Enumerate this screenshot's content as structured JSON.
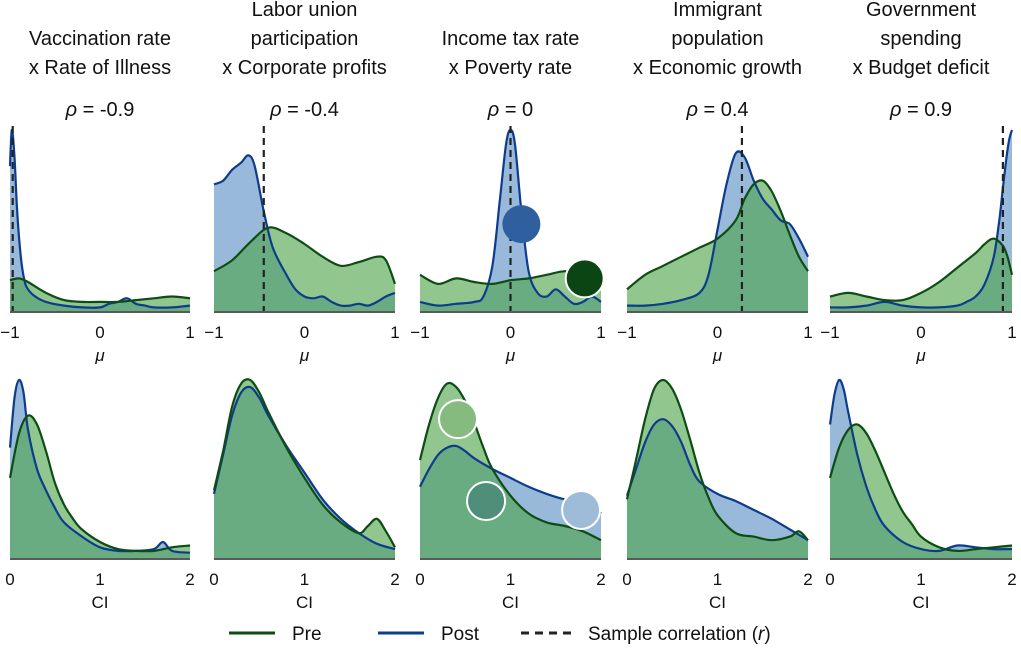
{
  "colors": {
    "pre_line": "#0d4d14",
    "pre_fill": "#4ea44b",
    "post_line": "#0e3c8c",
    "post_fill": "#5b8ec4",
    "dashed": "#222222",
    "marker_dark_blue": "#2f5f9e",
    "marker_dark_green": "#0b4513",
    "marker_light_green": "#86bb80",
    "marker_mid_green": "#4f8e79",
    "marker_light_blue": "#9ebcd8"
  },
  "legend": {
    "pre": "Pre",
    "post": "Post",
    "sample": "Sample correlation (r)",
    "sample_prefix": "Sample correlation (",
    "sample_var": "r",
    "sample_suffix": ")"
  },
  "chart_data": [
    {
      "type": "area",
      "panel": "top-1",
      "title_lines": [
        "Vaccination rate",
        "x Rate of Illness"
      ],
      "rho_label": "ρ = -0.9",
      "rho_var": "ρ",
      "rho_value": "= -0.9",
      "xlabel": "μ",
      "xlim": [
        -1,
        1
      ],
      "xticks": [
        "−1",
        "0",
        "1"
      ],
      "sample_r": -0.97,
      "series": [
        {
          "name": "Pre",
          "x": [
            -1,
            -0.9,
            -0.8,
            -0.6,
            -0.4,
            -0.2,
            0,
            0.2,
            0.4,
            0.6,
            0.8,
            1
          ],
          "y": [
            0.17,
            0.18,
            0.16,
            0.1,
            0.06,
            0.05,
            0.05,
            0.05,
            0.06,
            0.07,
            0.08,
            0.07
          ]
        },
        {
          "name": "Post",
          "x": [
            -1,
            -0.98,
            -0.95,
            -0.92,
            -0.88,
            -0.84,
            -0.8,
            -0.72,
            -0.6,
            -0.4,
            -0.2,
            0,
            0.1,
            0.2,
            0.3,
            0.4,
            0.5,
            0.6,
            0.8,
            1
          ],
          "y": [
            0.8,
            1.0,
            0.85,
            0.55,
            0.3,
            0.17,
            0.12,
            0.08,
            0.05,
            0.03,
            0.02,
            0.02,
            0.04,
            0.05,
            0.07,
            0.04,
            0.03,
            0.02,
            0.02,
            0.03
          ]
        }
      ]
    },
    {
      "type": "area",
      "panel": "top-2",
      "title_lines": [
        "Labor union",
        "participation",
        "x Corporate profits"
      ],
      "rho_label": "ρ = -0.4",
      "rho_var": "ρ",
      "rho_value": "= -0.4",
      "xlabel": "μ",
      "xlim": [
        -1,
        1
      ],
      "xticks": [
        "−1",
        "0",
        "1"
      ],
      "sample_r": -0.45,
      "series": [
        {
          "name": "Pre",
          "x": [
            -1,
            -0.8,
            -0.6,
            -0.4,
            -0.2,
            0,
            0.2,
            0.4,
            0.6,
            0.8,
            0.9,
            1
          ],
          "y": [
            0.22,
            0.28,
            0.38,
            0.46,
            0.43,
            0.37,
            0.3,
            0.25,
            0.27,
            0.3,
            0.28,
            0.15
          ]
        },
        {
          "name": "Post",
          "x": [
            -1,
            -0.9,
            -0.8,
            -0.7,
            -0.62,
            -0.55,
            -0.45,
            -0.35,
            -0.2,
            -0.1,
            0,
            0.1,
            0.2,
            0.3,
            0.4,
            0.5,
            0.6,
            0.7,
            0.8,
            0.9,
            1
          ],
          "y": [
            0.7,
            0.72,
            0.78,
            0.82,
            0.86,
            0.8,
            0.55,
            0.35,
            0.2,
            0.12,
            0.08,
            0.07,
            0.08,
            0.05,
            0.03,
            0.03,
            0.04,
            0.03,
            0.05,
            0.08,
            0.1
          ]
        }
      ]
    },
    {
      "type": "area",
      "panel": "top-3",
      "title_lines": [
        "Income tax rate",
        "x Poverty rate"
      ],
      "rho_label": "ρ = 0",
      "rho_var": "ρ",
      "rho_value": "= 0",
      "xlabel": "μ",
      "xlim": [
        -1,
        1
      ],
      "xticks": [
        "−1",
        "0",
        "1"
      ],
      "sample_r": 0,
      "series": [
        {
          "name": "Pre",
          "x": [
            -1,
            -0.8,
            -0.6,
            -0.4,
            -0.2,
            0,
            0.2,
            0.4,
            0.6,
            0.8,
            1
          ],
          "y": [
            0.2,
            0.15,
            0.18,
            0.16,
            0.15,
            0.17,
            0.18,
            0.2,
            0.22,
            0.21,
            0.18
          ]
        },
        {
          "name": "Post",
          "x": [
            -1,
            -0.8,
            -0.6,
            -0.4,
            -0.3,
            -0.2,
            -0.12,
            -0.05,
            0,
            0.05,
            0.12,
            0.2,
            0.3,
            0.4,
            0.5,
            0.6,
            0.7,
            0.8,
            0.9,
            1
          ],
          "y": [
            0.05,
            0.03,
            0.04,
            0.05,
            0.08,
            0.25,
            0.6,
            0.92,
            1.0,
            0.92,
            0.55,
            0.22,
            0.1,
            0.08,
            0.12,
            0.08,
            0.04,
            0.05,
            0.08,
            0.05
          ]
        }
      ],
      "markers": [
        {
          "x": 0.12,
          "y": 0.48,
          "color": "marker_dark_blue",
          "outline": "none"
        },
        {
          "x": 0.82,
          "y": 0.18,
          "color": "marker_dark_green",
          "outline": "white"
        }
      ]
    },
    {
      "type": "area",
      "panel": "top-4",
      "title_lines": [
        "Immigrant",
        "population",
        "x Economic growth"
      ],
      "rho_label": "ρ = 0.4",
      "rho_var": "ρ",
      "rho_value": "= 0.4",
      "xlabel": "μ",
      "xlim": [
        -1,
        1
      ],
      "xticks": [
        "−1",
        "0",
        "1"
      ],
      "sample_r": 0.27,
      "series": [
        {
          "name": "Pre",
          "x": [
            -1,
            -0.8,
            -0.6,
            -0.4,
            -0.2,
            0,
            0.2,
            0.3,
            0.4,
            0.5,
            0.6,
            0.7,
            0.8,
            0.9,
            1
          ],
          "y": [
            0.12,
            0.2,
            0.25,
            0.3,
            0.35,
            0.4,
            0.5,
            0.62,
            0.7,
            0.72,
            0.66,
            0.55,
            0.42,
            0.3,
            0.22
          ]
        },
        {
          "name": "Post",
          "x": [
            -1,
            -0.8,
            -0.6,
            -0.4,
            -0.2,
            -0.1,
            0,
            0.1,
            0.2,
            0.3,
            0.4,
            0.5,
            0.6,
            0.7,
            0.8,
            0.9,
            1
          ],
          "y": [
            0.03,
            0.03,
            0.04,
            0.06,
            0.1,
            0.2,
            0.45,
            0.7,
            0.87,
            0.85,
            0.72,
            0.62,
            0.56,
            0.5,
            0.48,
            0.4,
            0.3
          ]
        }
      ]
    },
    {
      "type": "area",
      "panel": "top-5",
      "title_lines": [
        "Government",
        "spending",
        "x Budget deficit"
      ],
      "rho_label": "ρ = 0.9",
      "rho_var": "ρ",
      "rho_value": "= 0.9",
      "xlabel": "μ",
      "xlim": [
        -1,
        1
      ],
      "xticks": [
        "−1",
        "0",
        "1"
      ],
      "sample_r": 0.9,
      "series": [
        {
          "name": "Pre",
          "x": [
            -1,
            -0.8,
            -0.6,
            -0.4,
            -0.2,
            0,
            0.2,
            0.4,
            0.6,
            0.7,
            0.8,
            0.9,
            0.95,
            1
          ],
          "y": [
            0.08,
            0.1,
            0.08,
            0.06,
            0.06,
            0.1,
            0.16,
            0.24,
            0.32,
            0.37,
            0.4,
            0.36,
            0.3,
            0.2
          ]
        },
        {
          "name": "Post",
          "x": [
            -1,
            -0.8,
            -0.6,
            -0.4,
            -0.2,
            0,
            0.2,
            0.4,
            0.5,
            0.6,
            0.7,
            0.8,
            0.86,
            0.9,
            0.94,
            0.97,
            1
          ],
          "y": [
            0.02,
            0.02,
            0.03,
            0.05,
            0.03,
            0.02,
            0.02,
            0.03,
            0.05,
            0.08,
            0.15,
            0.3,
            0.5,
            0.68,
            0.85,
            0.95,
            1.0
          ]
        }
      ]
    },
    {
      "type": "area",
      "panel": "bottom-1",
      "xlabel": "CI",
      "xlim": [
        0,
        2
      ],
      "xticks": [
        "0",
        "1",
        "2"
      ],
      "series": [
        {
          "name": "Pre",
          "x": [
            0,
            0.1,
            0.2,
            0.3,
            0.4,
            0.5,
            0.6,
            0.7,
            0.8,
            1,
            1.2,
            1.4,
            1.6,
            1.8,
            2
          ],
          "y": [
            0.45,
            0.7,
            0.8,
            0.75,
            0.6,
            0.42,
            0.3,
            0.22,
            0.16,
            0.09,
            0.05,
            0.04,
            0.04,
            0.06,
            0.07
          ]
        },
        {
          "name": "Post",
          "x": [
            0,
            0.05,
            0.1,
            0.15,
            0.2,
            0.3,
            0.4,
            0.5,
            0.6,
            0.8,
            1,
            1.2,
            1.4,
            1.6,
            1.7,
            1.8,
            2
          ],
          "y": [
            0.62,
            0.9,
            1.0,
            0.93,
            0.72,
            0.5,
            0.38,
            0.28,
            0.2,
            0.12,
            0.06,
            0.04,
            0.04,
            0.05,
            0.09,
            0.04,
            0.03
          ]
        }
      ]
    },
    {
      "type": "area",
      "panel": "bottom-2",
      "xlabel": "CI",
      "xlim": [
        0,
        2
      ],
      "xticks": [
        "0",
        "1",
        "2"
      ],
      "series": [
        {
          "name": "Pre",
          "x": [
            0,
            0.1,
            0.2,
            0.3,
            0.4,
            0.5,
            0.6,
            0.8,
            1,
            1.2,
            1.4,
            1.6,
            1.7,
            1.8,
            1.9,
            2
          ],
          "y": [
            0.38,
            0.6,
            0.85,
            0.98,
            1.0,
            0.93,
            0.82,
            0.62,
            0.45,
            0.3,
            0.2,
            0.14,
            0.18,
            0.22,
            0.15,
            0.06
          ]
        },
        {
          "name": "Post",
          "x": [
            0,
            0.1,
            0.2,
            0.3,
            0.4,
            0.5,
            0.6,
            0.8,
            1,
            1.2,
            1.4,
            1.6,
            1.8,
            2
          ],
          "y": [
            0.36,
            0.58,
            0.8,
            0.93,
            0.96,
            0.9,
            0.8,
            0.63,
            0.48,
            0.33,
            0.22,
            0.14,
            0.08,
            0.05
          ]
        }
      ]
    },
    {
      "type": "area",
      "panel": "bottom-3",
      "xlabel": "CI",
      "xlim": [
        0,
        2
      ],
      "xticks": [
        "0",
        "1",
        "2"
      ],
      "series": [
        {
          "name": "Pre",
          "x": [
            0,
            0.1,
            0.2,
            0.3,
            0.4,
            0.5,
            0.6,
            0.7,
            0.8,
            1,
            1.2,
            1.4,
            1.6,
            1.8,
            2
          ],
          "y": [
            0.55,
            0.75,
            0.9,
            0.98,
            0.96,
            0.88,
            0.76,
            0.62,
            0.5,
            0.35,
            0.25,
            0.2,
            0.18,
            0.15,
            0.1
          ]
        },
        {
          "name": "Post",
          "x": [
            0,
            0.1,
            0.2,
            0.3,
            0.4,
            0.5,
            0.6,
            0.8,
            1,
            1.2,
            1.4,
            1.6,
            1.8,
            1.9,
            2
          ],
          "y": [
            0.4,
            0.5,
            0.58,
            0.62,
            0.63,
            0.6,
            0.56,
            0.5,
            0.45,
            0.4,
            0.36,
            0.33,
            0.32,
            0.3,
            0.25
          ]
        }
      ],
      "markers": [
        {
          "x": 0.42,
          "y": 0.78,
          "color": "marker_light_green",
          "outline": "white"
        },
        {
          "x": 0.73,
          "y": 0.32,
          "color": "marker_mid_green",
          "outline": "white"
        },
        {
          "x": 1.78,
          "y": 0.27,
          "color": "marker_light_blue",
          "outline": "white"
        }
      ]
    },
    {
      "type": "area",
      "panel": "bottom-4",
      "xlabel": "CI",
      "xlim": [
        0,
        2
      ],
      "xticks": [
        "0",
        "1",
        "2"
      ],
      "series": [
        {
          "name": "Pre",
          "x": [
            0,
            0.1,
            0.2,
            0.3,
            0.4,
            0.5,
            0.6,
            0.7,
            0.8,
            0.9,
            1,
            1.2,
            1.4,
            1.6,
            1.8,
            1.9,
            2
          ],
          "y": [
            0.33,
            0.55,
            0.78,
            0.95,
            1.0,
            0.95,
            0.83,
            0.66,
            0.48,
            0.34,
            0.24,
            0.14,
            0.12,
            0.1,
            0.12,
            0.15,
            0.1
          ]
        },
        {
          "name": "Post",
          "x": [
            0,
            0.1,
            0.2,
            0.3,
            0.4,
            0.5,
            0.6,
            0.7,
            0.8,
            1,
            1.2,
            1.4,
            1.6,
            1.8,
            2
          ],
          "y": [
            0.35,
            0.5,
            0.65,
            0.75,
            0.78,
            0.74,
            0.65,
            0.52,
            0.43,
            0.36,
            0.32,
            0.27,
            0.22,
            0.16,
            0.1
          ]
        }
      ]
    },
    {
      "type": "area",
      "panel": "bottom-5",
      "xlabel": "CI",
      "xlim": [
        0,
        2
      ],
      "xticks": [
        "0",
        "1",
        "2"
      ],
      "series": [
        {
          "name": "Pre",
          "x": [
            0,
            0.1,
            0.2,
            0.3,
            0.4,
            0.5,
            0.6,
            0.7,
            0.8,
            0.9,
            1,
            1.2,
            1.4,
            1.6,
            1.8,
            2
          ],
          "y": [
            0.45,
            0.62,
            0.72,
            0.75,
            0.7,
            0.6,
            0.48,
            0.36,
            0.26,
            0.19,
            0.12,
            0.06,
            0.04,
            0.05,
            0.06,
            0.07
          ]
        },
        {
          "name": "Post",
          "x": [
            0,
            0.05,
            0.1,
            0.15,
            0.2,
            0.3,
            0.4,
            0.5,
            0.6,
            0.8,
            1,
            1.2,
            1.4,
            1.6,
            1.8,
            2
          ],
          "y": [
            0.75,
            0.92,
            1.0,
            0.95,
            0.82,
            0.58,
            0.4,
            0.27,
            0.18,
            0.09,
            0.05,
            0.04,
            0.07,
            0.06,
            0.05,
            0.05
          ]
        }
      ]
    }
  ]
}
